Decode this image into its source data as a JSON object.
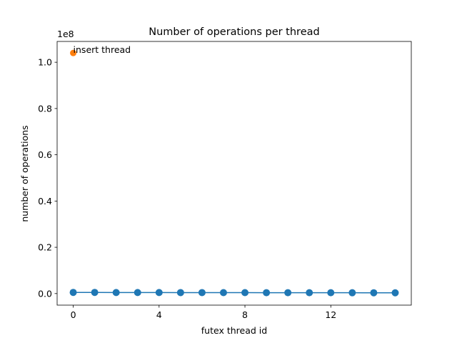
{
  "chart_data": {
    "type": "line",
    "title": "Number of operations per thread",
    "xlabel": "futex thread id",
    "ylabel": "number of operations",
    "y_offset_label": "1e8",
    "xlim": [
      -0.75,
      15.75
    ],
    "ylim": [
      -5000000,
      109000000
    ],
    "xticks": [
      0,
      4,
      8,
      12
    ],
    "xtick_labels": [
      "0",
      "4",
      "8",
      "12"
    ],
    "yticks": [
      0,
      20000000,
      40000000,
      60000000,
      80000000,
      100000000
    ],
    "ytick_labels": [
      "0.0",
      "0.2",
      "0.4",
      "0.6",
      "0.8",
      "1.0"
    ],
    "grid": false,
    "series": [
      {
        "x": [
          0,
          1,
          2,
          3,
          4,
          5,
          6,
          7,
          8,
          9,
          10,
          11,
          12,
          13,
          14,
          15
        ],
        "values": [
          500000,
          500000,
          450000,
          450000,
          450000,
          420000,
          420000,
          400000,
          400000,
          380000,
          380000,
          370000,
          360000,
          350000,
          340000,
          330000
        ],
        "color": "#1f77b4",
        "marker": "circle",
        "connected": true
      },
      {
        "x": [
          0
        ],
        "values": [
          104000000
        ],
        "color": "#ff7f0e",
        "marker": "circle",
        "connected": false
      }
    ],
    "annotations": [
      {
        "text": "insert thread",
        "x": 0,
        "y": 104000000
      }
    ]
  }
}
